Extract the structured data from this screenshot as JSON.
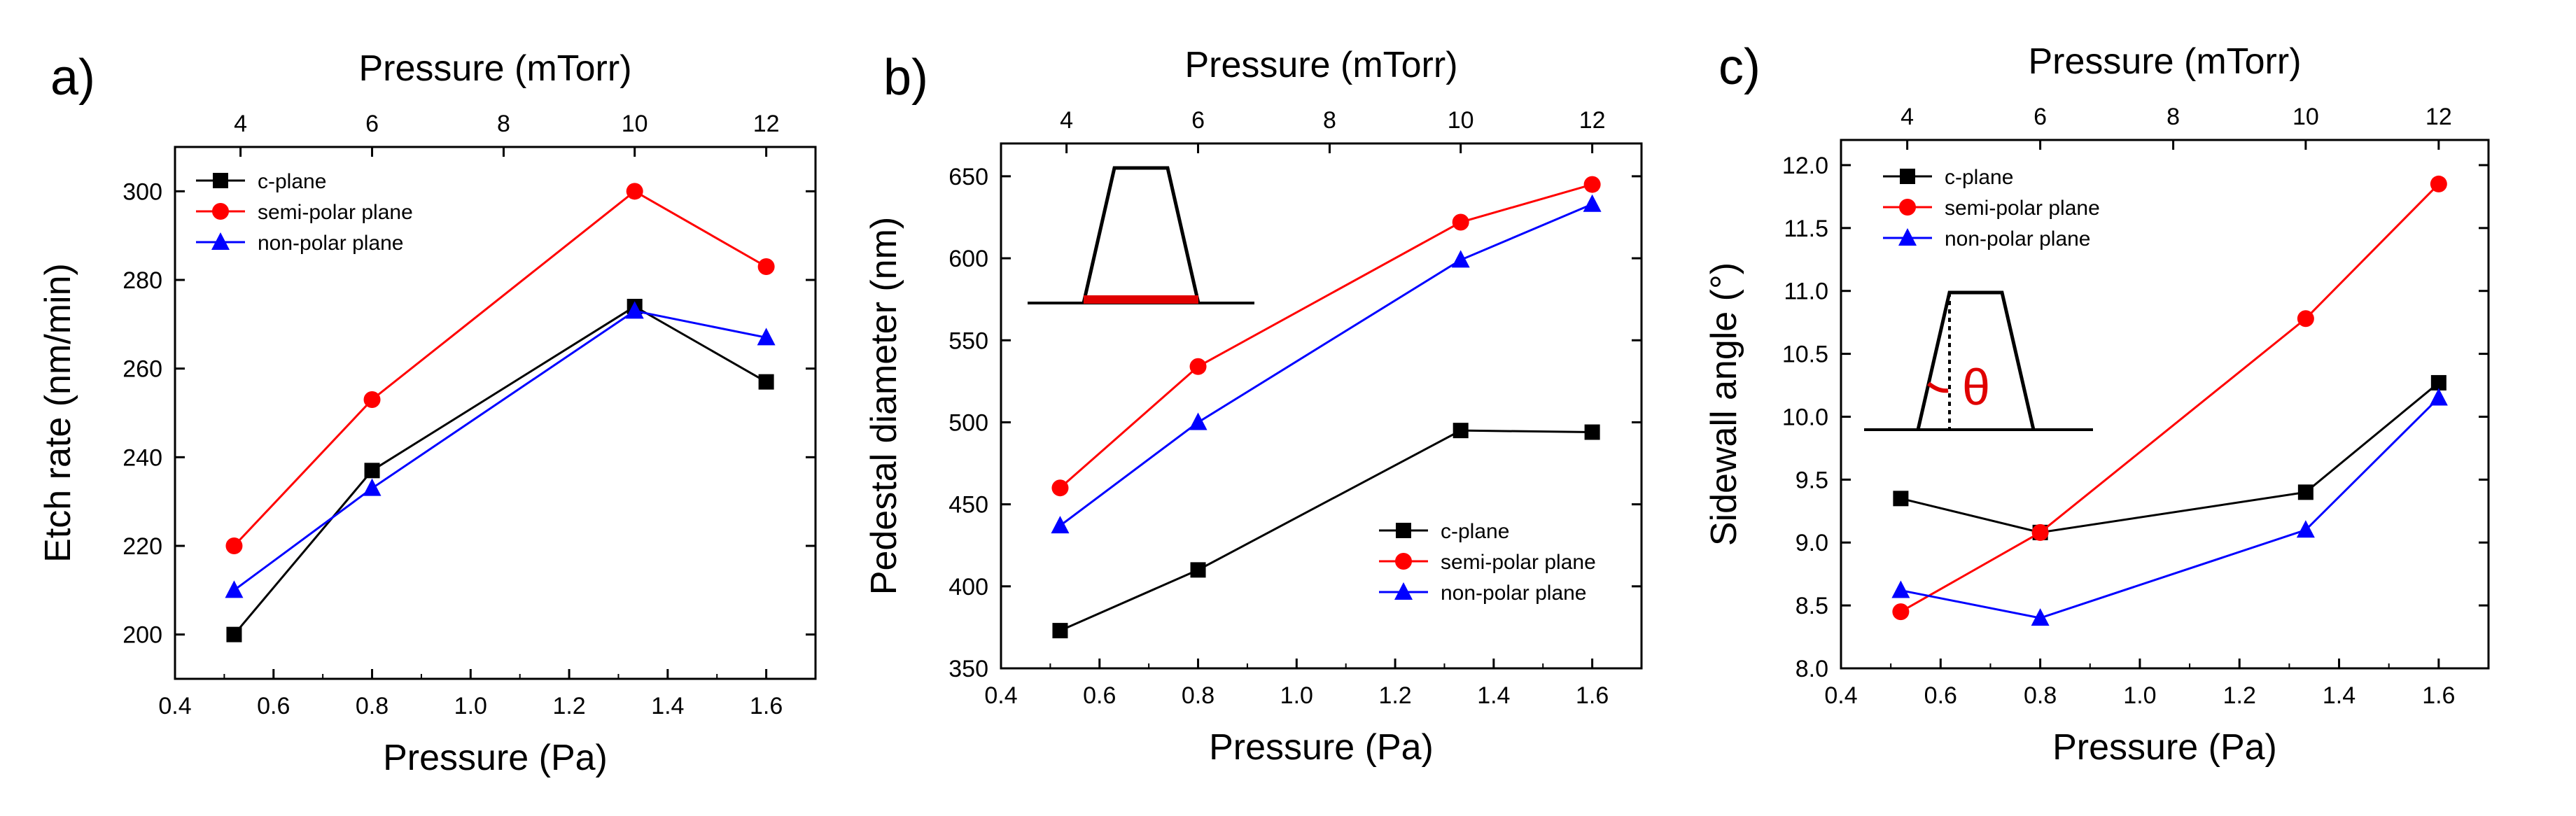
{
  "chart_data": [
    {
      "type": "line",
      "panel_label": "a)",
      "title": "",
      "xlabel": "Pressure (Pa)",
      "ylabel": "Etch rate (nm/min)",
      "top_xlabel": "Pressure (mTorr)",
      "xlim": [
        0.4,
        1.7
      ],
      "ylim": [
        190,
        310
      ],
      "xticks": [
        "0.4",
        "0.6",
        "0.8",
        "1.0",
        "1.2",
        "1.4",
        "1.6"
      ],
      "yticks": [
        "200",
        "220",
        "240",
        "260",
        "280",
        "300"
      ],
      "top_ticks": [
        "4",
        "6",
        "8",
        "10",
        "12"
      ],
      "x": [
        0.52,
        0.8,
        1.333,
        1.6
      ],
      "legend_position": "top-left",
      "series": [
        {
          "name": "c-plane",
          "color": "#000000",
          "marker": "square",
          "values": [
            200,
            237,
            274,
            257
          ]
        },
        {
          "name": "semi-polar plane",
          "color": "#ff0000",
          "marker": "circle",
          "values": [
            220,
            253,
            300,
            283
          ]
        },
        {
          "name": "non-polar plane",
          "color": "#0000ff",
          "marker": "triangle",
          "values": [
            210,
            233,
            273,
            267
          ]
        }
      ]
    },
    {
      "type": "line",
      "panel_label": "b)",
      "title": "",
      "xlabel": "Pressure (Pa)",
      "ylabel": "Pedestal diameter (nm)",
      "top_xlabel": "Pressure (mTorr)",
      "xlim": [
        0.4,
        1.7
      ],
      "ylim": [
        350,
        670
      ],
      "xticks": [
        "0.4",
        "0.6",
        "0.8",
        "1.0",
        "1.2",
        "1.4",
        "1.6"
      ],
      "yticks": [
        "350",
        "400",
        "450",
        "500",
        "550",
        "600",
        "650"
      ],
      "top_ticks": [
        "4",
        "6",
        "8",
        "10",
        "12"
      ],
      "x": [
        0.52,
        0.8,
        1.333,
        1.6
      ],
      "legend_position": "bottom-right",
      "series": [
        {
          "name": "c-plane",
          "color": "#000000",
          "marker": "square",
          "values": [
            373,
            410,
            495,
            494
          ]
        },
        {
          "name": "semi-polar plane",
          "color": "#ff0000",
          "marker": "circle",
          "values": [
            460,
            534,
            622,
            645
          ]
        },
        {
          "name": "non-polar plane",
          "color": "#0000ff",
          "marker": "triangle",
          "values": [
            437,
            500,
            599,
            633
          ]
        }
      ]
    },
    {
      "type": "line",
      "panel_label": "c)",
      "title": "",
      "xlabel": "Pressure (Pa)",
      "ylabel": "Sidewall angle (°)",
      "top_xlabel": "Pressure (mTorr)",
      "xlim": [
        0.4,
        1.7
      ],
      "ylim": [
        8.0,
        12.2
      ],
      "xticks": [
        "0.4",
        "0.6",
        "0.8",
        "1.0",
        "1.2",
        "1.4",
        "1.6"
      ],
      "yticks": [
        "8.0",
        "8.5",
        "9.0",
        "9.5",
        "10.0",
        "10.5",
        "11.0",
        "11.5",
        "12.0"
      ],
      "top_ticks": [
        "4",
        "6",
        "8",
        "10",
        "12"
      ],
      "x": [
        0.52,
        0.8,
        1.333,
        1.6
      ],
      "legend_position": "top-left",
      "inset_symbol": "θ",
      "series": [
        {
          "name": "c-plane",
          "color": "#000000",
          "marker": "square",
          "values": [
            9.35,
            9.08,
            9.4,
            10.27
          ]
        },
        {
          "name": "semi-polar plane",
          "color": "#ff0000",
          "marker": "circle",
          "values": [
            8.45,
            9.08,
            10.78,
            11.85
          ]
        },
        {
          "name": "non-polar plane",
          "color": "#0000ff",
          "marker": "triangle",
          "values": [
            8.62,
            8.4,
            9.1,
            10.15
          ]
        }
      ]
    }
  ]
}
